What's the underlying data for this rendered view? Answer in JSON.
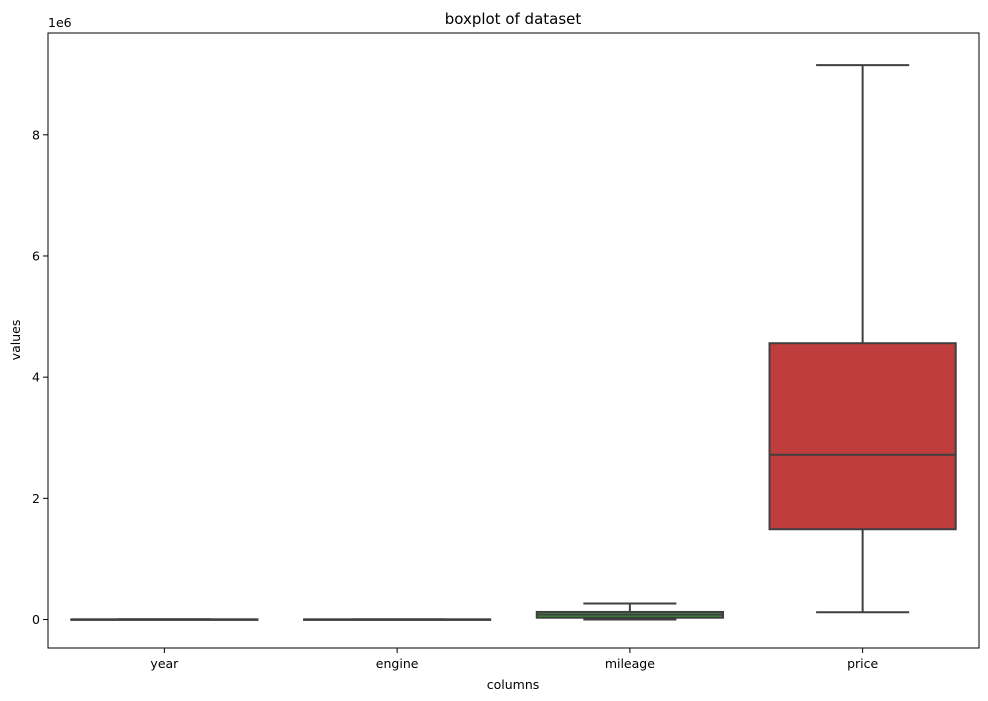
{
  "chart_data": {
    "type": "boxplot",
    "title": "boxplot of dataset",
    "xlabel": "columns",
    "ylabel": "values",
    "y_multiplier_label": "1e6",
    "ylim": [
      -470000,
      9680000
    ],
    "yticks": [
      0,
      2000000,
      4000000,
      6000000,
      8000000
    ],
    "ytick_labels": [
      "0",
      "2",
      "4",
      "6",
      "8"
    ],
    "grid": false,
    "categories": [
      "year",
      "engine",
      "mileage",
      "price"
    ],
    "boxes": [
      {
        "name": "year",
        "color": "#3a72a8",
        "whisker_low": 1995,
        "q1": 2008,
        "median": 2012,
        "q3": 2016,
        "whisker_high": 2022
      },
      {
        "name": "engine",
        "color": "#e1812c",
        "whisker_low": 1000,
        "q1": 1300,
        "median": 1500,
        "q3": 1800,
        "whisker_high": 2500
      },
      {
        "name": "mileage",
        "color": "#3a923a",
        "whisker_low": 0,
        "q1": 30000,
        "median": 80000,
        "q3": 125000,
        "whisker_high": 265000
      },
      {
        "name": "price",
        "color": "#c03d3e",
        "whisker_low": 120000,
        "q1": 1490000,
        "median": 2720000,
        "q3": 4560000,
        "whisker_high": 9150000
      }
    ]
  }
}
